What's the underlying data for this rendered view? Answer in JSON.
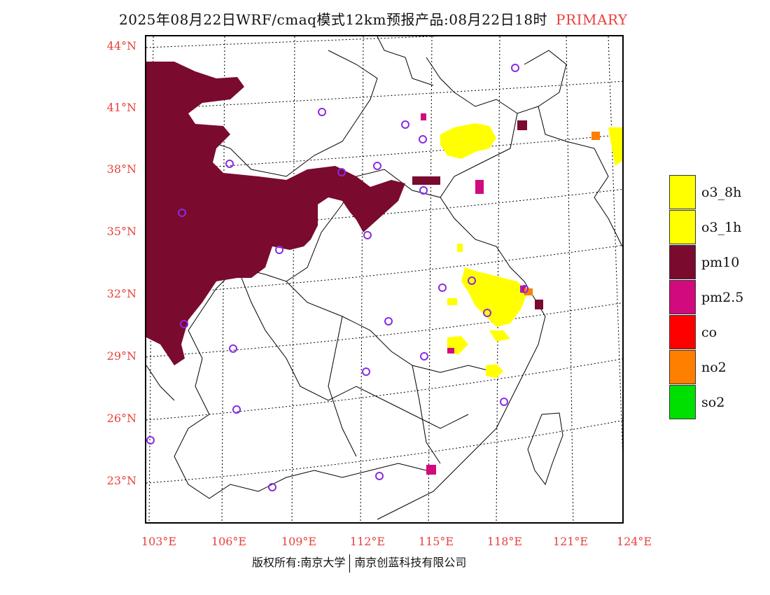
{
  "title": {
    "main": "2025年08月22日WRF/cmaq模式12km预报产品:08月22日18时",
    "tag": "PRIMARY"
  },
  "axes": {
    "lat_labels": [
      "44°N",
      "41°N",
      "38°N",
      "35°N",
      "32°N",
      "29°N",
      "26°N",
      "23°N"
    ],
    "lon_labels": [
      "103°E",
      "106°E",
      "109°E",
      "112°E",
      "115°E",
      "118°E",
      "121°E",
      "124°E"
    ]
  },
  "legend": {
    "items": [
      {
        "label": "o3_8h",
        "color": "#ffff00"
      },
      {
        "label": "o3_1h",
        "color": "#ffff00"
      },
      {
        "label": "pm10",
        "color": "#7a0a2e"
      },
      {
        "label": "pm2.5",
        "color": "#d10a7d"
      },
      {
        "label": "co",
        "color": "#ff0000"
      },
      {
        "label": "no2",
        "color": "#ff7f00"
      },
      {
        "label": "so2",
        "color": "#00e000"
      }
    ]
  },
  "colors": {
    "o3": "#ffff00",
    "pm10": "#7a0a2e",
    "pm25": "#d10a7d",
    "no2": "#ff7f00",
    "station_marker": "#8a2be2",
    "axis_label": "#e8403a"
  },
  "copyright": {
    "left": "版权所有:南京大学",
    "right": "南京创蓝科技有限公司"
  }
}
